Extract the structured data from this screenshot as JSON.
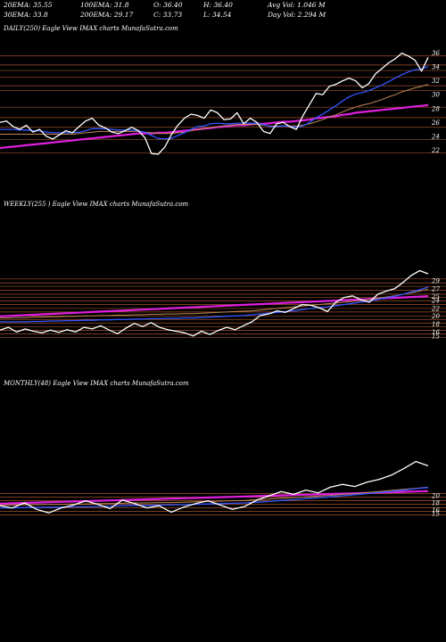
{
  "stats": {
    "ema20": "20EMA: 35.55",
    "ema100": "100EMA: 31.8",
    "open": "O: 36.40",
    "high": "H: 36.40",
    "avg_vol": "Avg Vol: 1.046  M",
    "ema30": "30EMA: 33.8",
    "ema200": "200EMA: 29.17",
    "close": "C: 33.73",
    "low": "L: 34.54",
    "day_vol": "Day Vol: 2.294  M"
  },
  "colors": {
    "price": "#ffffff",
    "ema_fast": "#3355ff",
    "ema_slow": "#c08858",
    "ema_long": "#e020e0",
    "level": "#a0522d"
  },
  "chart_data": [
    {
      "type": "line",
      "title": "DAILY(250) Eagle  View  IMAX  charts MunafaSutra.com",
      "y_ticks": [
        "36",
        "34",
        "32",
        "30",
        "28",
        "26",
        "24",
        "22"
      ],
      "ylim": [
        20.5,
        37.5
      ],
      "levels": [
        35.6,
        34.3,
        33.5,
        32.5,
        31.3,
        30.6,
        28.2,
        26.7,
        25.3,
        23.5,
        21.6
      ],
      "series": [
        {
          "role": "price",
          "color": "#ffffff",
          "values": [
            26.0,
            26.2,
            25.4,
            25.0,
            25.6,
            24.6,
            25.0,
            24.0,
            23.6,
            24.2,
            24.8,
            24.5,
            25.4,
            26.2,
            26.6,
            25.6,
            25.2,
            24.6,
            24.4,
            24.8,
            25.3,
            24.8,
            23.8,
            21.5,
            21.4,
            22.4,
            24.2,
            25.6,
            26.6,
            27.2,
            27.0,
            26.6,
            27.8,
            27.4,
            26.4,
            26.5,
            27.4,
            25.8,
            26.6,
            26.0,
            24.7,
            24.4,
            25.8,
            26.0,
            25.4,
            25.0,
            27.0,
            28.6,
            30.2,
            30.0,
            31.2,
            31.5,
            32.0,
            32.4,
            32.0,
            31.0,
            31.6,
            33.0,
            33.8,
            34.6,
            35.2,
            36.0,
            35.6,
            35.0,
            33.4,
            35.4
          ]
        },
        {
          "role": "ema_fast",
          "color": "#3355ff",
          "values": [
            25.0,
            25.0,
            25.0,
            24.9,
            24.9,
            24.8,
            24.8,
            24.6,
            24.5,
            24.5,
            24.5,
            24.5,
            24.6,
            24.8,
            25.1,
            25.1,
            25.1,
            25.0,
            24.9,
            24.9,
            24.9,
            24.8,
            24.6,
            24.1,
            23.7,
            23.6,
            23.7,
            24.1,
            24.5,
            25.0,
            25.4,
            25.5,
            25.8,
            25.9,
            25.8,
            25.8,
            25.9,
            25.9,
            25.9,
            25.9,
            25.7,
            25.4,
            25.4,
            25.5,
            25.4,
            25.3,
            25.5,
            26.0,
            26.7,
            27.2,
            27.8,
            28.4,
            29.1,
            29.7,
            30.1,
            30.3,
            30.6,
            31.0,
            31.4,
            31.9,
            32.4,
            32.9,
            33.3,
            33.6,
            33.7,
            34.1
          ]
        },
        {
          "role": "ema_slow",
          "color": "#c08858",
          "values": [
            24.3,
            24.3,
            24.3,
            24.3,
            24.3,
            24.3,
            24.3,
            24.3,
            24.3,
            24.3,
            24.3,
            24.3,
            24.4,
            24.5,
            24.6,
            24.7,
            24.7,
            24.7,
            24.7,
            24.7,
            24.7,
            24.7,
            24.6,
            24.5,
            24.4,
            24.4,
            24.4,
            24.5,
            24.6,
            24.8,
            25.0,
            25.1,
            25.3,
            25.4,
            25.5,
            25.6,
            25.7,
            25.7,
            25.7,
            25.7,
            25.6,
            25.5,
            25.5,
            25.5,
            25.5,
            25.5,
            25.6,
            25.8,
            26.1,
            26.4,
            26.8,
            27.1,
            27.5,
            27.9,
            28.2,
            28.5,
            28.7,
            29.0,
            29.3,
            29.7,
            30.0,
            30.4,
            30.7,
            31.0,
            31.2,
            31.5
          ]
        },
        {
          "role": "ema_long",
          "color": "#e020e0",
          "values": [
            22.3,
            22.4,
            22.5,
            22.6,
            22.7,
            22.8,
            22.9,
            23.0,
            23.1,
            23.2,
            23.3,
            23.4,
            23.5,
            23.6,
            23.7,
            23.8,
            23.9,
            24.0,
            24.1,
            24.2,
            24.3,
            24.4,
            24.4,
            24.4,
            24.5,
            24.5,
            24.6,
            24.7,
            24.8,
            24.9,
            25.0,
            25.1,
            25.2,
            25.3,
            25.4,
            25.5,
            25.6,
            25.6,
            25.7,
            25.8,
            25.8,
            25.9,
            26.0,
            26.1,
            26.1,
            26.2,
            26.3,
            26.4,
            26.6,
            26.7,
            26.8,
            26.9,
            27.1,
            27.2,
            27.4,
            27.5,
            27.6,
            27.7,
            27.8,
            27.9,
            28.0,
            28.1,
            28.2,
            28.3,
            28.4,
            28.5
          ]
        }
      ]
    },
    {
      "type": "line",
      "title": "WEEKLY(255                          ) Eagle   View  IMAX  charts MunafaSutra.com",
      "y_ticks": [
        "29",
        "27",
        "25",
        "24",
        "22",
        "20",
        "18",
        "16",
        "15"
      ],
      "ylim": [
        13.6,
        32.4
      ],
      "levels": [
        29.5,
        28.5,
        27.6,
        26.6,
        25.6,
        24.8,
        23.9,
        23.0,
        22.0,
        21.1,
        20.1,
        19.2,
        18.3,
        17.3,
        16.4,
        15.5,
        14.6
      ],
      "series": [
        {
          "role": "price",
          "color": "#ffffff",
          "values": [
            16.5,
            17.2,
            16.0,
            16.8,
            16.2,
            15.8,
            16.5,
            15.9,
            16.6,
            16.0,
            17.2,
            16.8,
            17.6,
            16.5,
            15.6,
            17.0,
            18.2,
            17.4,
            18.4,
            17.2,
            16.6,
            16.2,
            15.8,
            15.0,
            16.2,
            15.4,
            16.4,
            17.2,
            16.6,
            17.6,
            18.6,
            20.2,
            20.6,
            21.4,
            21.0,
            22.0,
            23.0,
            22.8,
            22.2,
            21.2,
            23.6,
            24.8,
            25.2,
            24.2,
            23.6,
            25.6,
            26.4,
            27.0,
            28.6,
            30.4,
            31.6,
            30.8
          ]
        },
        {
          "role": "ema_fast",
          "color": "#3355ff",
          "values": [
            18.6,
            18.6,
            18.6,
            18.6,
            18.7,
            18.7,
            18.8,
            18.8,
            18.9,
            18.9,
            19.0,
            19.0,
            19.1,
            19.1,
            19.2,
            19.2,
            19.3,
            19.3,
            19.4,
            19.4,
            19.5,
            19.5,
            19.6,
            19.6,
            19.7,
            19.8,
            19.9,
            20.0,
            20.1,
            20.2,
            20.4,
            20.6,
            20.8,
            21.0,
            21.2,
            21.4,
            21.7,
            22.0,
            22.2,
            22.4,
            22.7,
            23.0,
            23.3,
            23.6,
            23.9,
            24.3,
            24.7,
            25.1,
            25.6,
            26.2,
            26.8,
            27.4
          ]
        },
        {
          "role": "ema_slow",
          "color": "#c08858",
          "values": [
            19.6,
            19.6,
            19.7,
            19.7,
            19.8,
            19.8,
            19.9,
            19.9,
            20.0,
            20.0,
            20.1,
            20.1,
            20.2,
            20.2,
            20.3,
            20.3,
            20.4,
            20.4,
            20.5,
            20.5,
            20.6,
            20.6,
            20.7,
            20.7,
            20.8,
            20.9,
            21.0,
            21.1,
            21.2,
            21.3,
            21.4,
            21.6,
            21.8,
            22.0,
            22.2,
            22.4,
            22.6,
            22.8,
            23.0,
            23.2,
            23.4,
            23.6,
            23.8,
            24.0,
            24.3,
            24.6,
            24.9,
            25.2,
            25.6,
            26.0,
            26.4,
            26.9
          ]
        },
        {
          "role": "ema_long",
          "color": "#e020e0",
          "values": [
            20.0,
            20.1,
            20.2,
            20.3,
            20.4,
            20.5,
            20.6,
            20.7,
            20.8,
            20.9,
            21.0,
            21.1,
            21.2,
            21.3,
            21.4,
            21.5,
            21.6,
            21.7,
            21.8,
            21.9,
            22.0,
            22.1,
            22.2,
            22.3,
            22.4,
            22.5,
            22.6,
            22.7,
            22.8,
            22.9,
            23.0,
            23.1,
            23.2,
            23.3,
            23.4,
            23.5,
            23.6,
            23.7,
            23.8,
            23.9,
            24.0,
            24.1,
            24.2,
            24.3,
            24.4,
            24.5,
            24.6,
            24.7,
            24.8,
            24.9,
            25.0,
            25.1
          ]
        }
      ]
    },
    {
      "type": "line",
      "title": "MONTHLY(48) Eagle  View  IMAX  charts MunafaSutra.com",
      "y_ticks": [
        "20",
        "18",
        "16",
        "15"
      ],
      "ylim": [
        13.0,
        32.0
      ],
      "levels": [
        20.6,
        19.6,
        18.6,
        17.6,
        16.6,
        15.6,
        14.6
      ],
      "series": [
        {
          "role": "price",
          "color": "#ffffff",
          "values": [
            17.2,
            16.6,
            18.0,
            16.2,
            15.2,
            16.6,
            17.4,
            18.6,
            17.6,
            16.4,
            18.8,
            17.8,
            16.6,
            17.2,
            15.4,
            16.8,
            17.8,
            18.6,
            17.4,
            16.2,
            17.0,
            18.8,
            20.0,
            21.2,
            20.4,
            21.6,
            20.8,
            22.4,
            23.2,
            22.6,
            23.8,
            24.6,
            25.8,
            27.6,
            29.6,
            28.4
          ]
        },
        {
          "role": "ema_fast",
          "color": "#3355ff",
          "values": [
            16.6,
            16.6,
            16.7,
            16.7,
            16.8,
            16.8,
            16.9,
            16.9,
            17.0,
            17.1,
            17.2,
            17.3,
            17.3,
            17.4,
            17.4,
            17.5,
            17.6,
            17.7,
            17.8,
            17.9,
            18.0,
            18.2,
            18.4,
            18.7,
            18.9,
            19.2,
            19.4,
            19.7,
            20.0,
            20.3,
            20.6,
            20.9,
            21.2,
            21.6,
            22.0,
            22.3
          ]
        },
        {
          "role": "ema_slow",
          "color": "#c08858",
          "values": [
            17.4,
            17.4,
            17.5,
            17.5,
            17.6,
            17.6,
            17.7,
            17.7,
            17.8,
            17.8,
            17.9,
            18.0,
            18.0,
            18.1,
            18.1,
            18.2,
            18.3,
            18.4,
            18.5,
            18.6,
            18.7,
            18.9,
            19.1,
            19.3,
            19.5,
            19.7,
            19.9,
            20.1,
            20.4,
            20.6,
            20.9,
            21.2,
            21.5,
            21.8,
            22.1,
            22.4
          ]
        },
        {
          "role": "ema_long",
          "color": "#e020e0",
          "values": [
            17.8,
            17.9,
            18.0,
            18.1,
            18.2,
            18.3,
            18.4,
            18.5,
            18.6,
            18.7,
            18.8,
            18.9,
            19.0,
            19.1,
            19.2,
            19.3,
            19.4,
            19.5,
            19.6,
            19.7,
            19.8,
            19.9,
            20.0,
            20.1,
            20.2,
            20.3,
            20.4,
            20.5,
            20.6,
            20.7,
            20.8,
            20.9,
            21.0,
            21.1,
            21.2,
            21.3
          ]
        }
      ]
    }
  ]
}
